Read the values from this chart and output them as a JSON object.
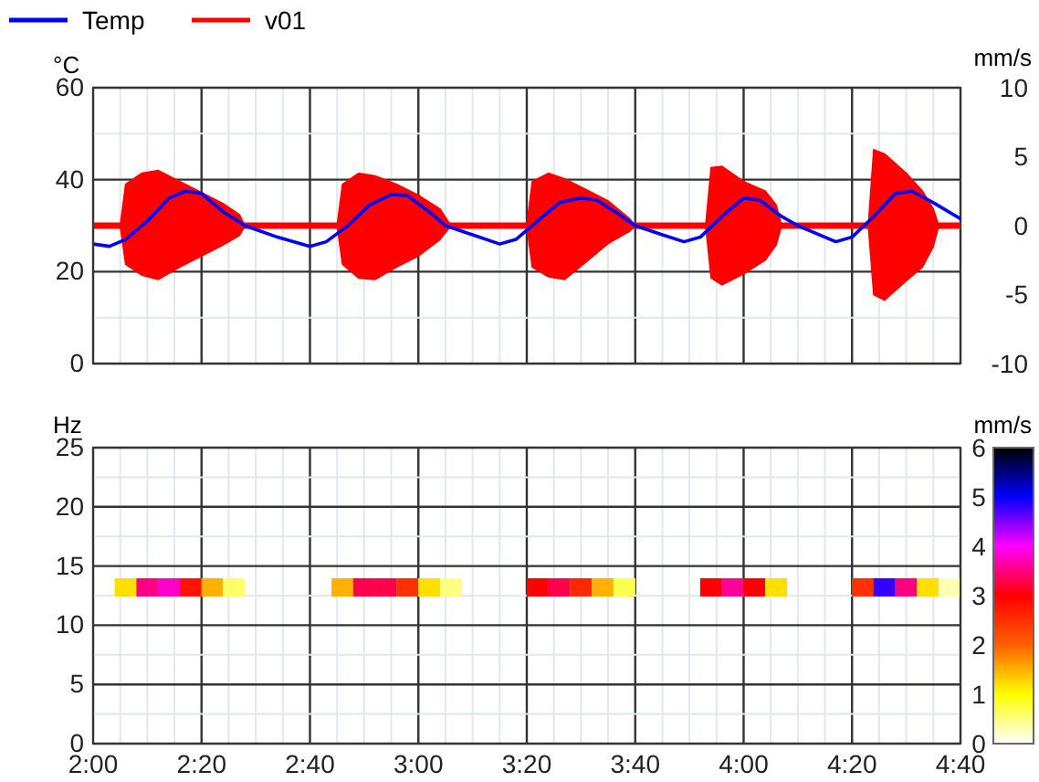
{
  "chart_data": [
    {
      "type": "line",
      "ylabel": "°C",
      "y2label": "mm/s",
      "legend": "top left",
      "grid": true,
      "tick_labels": "y",
      "xlim": [
        2,
        4.6667
      ],
      "xticks": [
        {
          "value": 2,
          "label": null
        },
        {
          "value": 2.3333,
          "label": null
        },
        {
          "value": 2.6667,
          "label": null
        },
        {
          "value": 3,
          "label": null
        },
        {
          "value": 3.3333,
          "label": null
        },
        {
          "value": 3.6667,
          "label": null
        },
        {
          "value": 4,
          "label": null
        },
        {
          "value": 4.3333,
          "label": null
        },
        {
          "value": 4.6667,
          "label": null
        }
      ],
      "ylim": [
        0,
        60
      ],
      "yticks": [
        0,
        20,
        40,
        60
      ],
      "y2lim": [
        -10,
        10
      ],
      "y2ticks": [
        -10,
        -5,
        0,
        5,
        10
      ],
      "series": [
        {
          "name": "Temp",
          "color": "#0000ff",
          "x": [
            2,
            2.05,
            2.1,
            2.1667,
            2.2333,
            2.2833,
            2.3333,
            2.4,
            2.4667,
            2.5667,
            2.6667,
            2.7167,
            2.7833,
            2.85,
            2.9167,
            2.9667,
            3.0333,
            3.0833,
            3.1667,
            3.25,
            3.3,
            3.3667,
            3.4333,
            3.5,
            3.55,
            3.6167,
            3.6667,
            3.75,
            3.8167,
            3.8667,
            3.9333,
            4,
            4.05,
            4.1167,
            4.1667,
            4.2333,
            4.2833,
            4.3333,
            4.4,
            4.4667,
            4.5167,
            4.5833,
            4.6667
          ],
          "values": [
            26,
            25.5,
            27,
            31,
            36,
            37.5,
            37,
            33,
            30,
            27.5,
            25.5,
            26.5,
            30,
            34.5,
            36.8,
            36.5,
            33,
            30,
            28,
            26,
            27,
            31,
            35,
            36,
            35.5,
            32.5,
            30,
            28,
            26.5,
            27.5,
            32,
            36,
            35.5,
            32,
            30,
            28,
            26.5,
            27.5,
            32,
            37,
            37.5,
            35,
            31.5
          ]
        },
        {
          "name": "v01",
          "color": "#ff0000",
          "axis": "y2",
          "x": [
            2,
            2.0833,
            2.1,
            2.15,
            2.2,
            2.2667,
            2.3333,
            2.4,
            2.45,
            2.4667,
            2.75,
            2.7667,
            2.8167,
            2.8667,
            2.9333,
            3,
            3.0667,
            3.1,
            3.3333,
            3.35,
            3.4,
            3.45,
            3.5167,
            3.5833,
            3.65,
            3.6667,
            3.8833,
            3.9,
            3.9333,
            4,
            4.0667,
            4.1,
            4.1167,
            4.3833,
            4.4,
            4.4333,
            4.5,
            4.55,
            4.5833,
            4.6,
            4.6667
          ],
          "values": [
            0,
            0,
            0,
            0,
            0,
            0,
            0,
            0,
            0,
            0,
            0,
            0,
            0,
            0,
            0,
            0,
            0,
            0,
            0,
            0,
            0,
            0,
            0,
            0,
            0,
            0,
            0,
            0,
            0,
            0,
            0,
            0,
            0,
            0,
            0,
            0,
            0,
            0,
            0,
            0,
            0
          ],
          "upper": [
            0,
            0,
            3,
            3.8,
            4,
            3.2,
            2.4,
            1.6,
            0.8,
            0,
            0,
            3,
            3.8,
            3.6,
            3,
            2.2,
            1.2,
            0,
            0,
            3.2,
            3.8,
            3.4,
            2.6,
            1.8,
            0.5,
            0,
            0,
            4.2,
            4.3,
            3.2,
            2.5,
            1.5,
            0,
            0,
            5.5,
            5.2,
            3.8,
            2.5,
            1.2,
            0,
            0
          ],
          "lower": [
            0,
            0,
            -2.8,
            -3.6,
            -3.9,
            -3,
            -2.2,
            -1.4,
            -0.7,
            0,
            0,
            -2.8,
            -3.8,
            -3.9,
            -3,
            -2.2,
            -1,
            0,
            0,
            -3,
            -3.7,
            -3.9,
            -2.6,
            -1.3,
            -0.4,
            0,
            0,
            -3.8,
            -4.3,
            -3.5,
            -2.5,
            -1.4,
            0,
            0,
            -5,
            -5.4,
            -4,
            -3,
            -1.5,
            0,
            0
          ]
        }
      ]
    },
    {
      "type": "scatter",
      "ylabel": "Hz",
      "clabel": "mm/s",
      "grid": true,
      "marker": "square",
      "x": [
        2.1,
        2.1667,
        2.2333,
        2.3,
        2.3667,
        2.4333,
        2.7667,
        2.8333,
        2.9,
        2.9667,
        3.0333,
        3.1,
        3.3667,
        3.4333,
        3.5,
        3.5667,
        3.6333,
        3.9,
        3.9667,
        4.0333,
        4.1,
        4.3667,
        4.4333,
        4.5,
        4.5667,
        4.6333
      ],
      "values": [
        13.2,
        13.2,
        13.2,
        13.2,
        13.2,
        13.2,
        13.2,
        13.2,
        13.2,
        13.2,
        13.2,
        13.2,
        13.2,
        13.2,
        13.2,
        13.2,
        13.2,
        13.2,
        13.2,
        13.2,
        13.2,
        13.2,
        13.2,
        13.2,
        13.2,
        13.2
      ],
      "cvalues": [
        1.2,
        3.5,
        3.8,
        2.8,
        1.5,
        0.6,
        1.5,
        3.3,
        3.3,
        2.5,
        1.2,
        0.5,
        3.0,
        3.3,
        2.6,
        1.5,
        0.7,
        3.0,
        3.6,
        3.0,
        1.2,
        2.5,
        4.8,
        3.5,
        1.2,
        0.3
      ],
      "xlim": [
        2,
        4.6667
      ],
      "xticks": [
        {
          "value": 2,
          "label": "2:00"
        },
        {
          "value": 2.3333,
          "label": "2:20"
        },
        {
          "value": 2.6667,
          "label": "2:40"
        },
        {
          "value": 3,
          "label": "3:00"
        },
        {
          "value": 3.3333,
          "label": "3:20"
        },
        {
          "value": 3.6667,
          "label": "3:40"
        },
        {
          "value": 4,
          "label": "4:00"
        },
        {
          "value": 4.3333,
          "label": "4:20"
        },
        {
          "value": 4.6667,
          "label": "4:40"
        }
      ],
      "ylim": [
        0,
        25
      ],
      "yticks": [
        0,
        5,
        10,
        15,
        20,
        25
      ],
      "clim": [
        0,
        6
      ],
      "cticks": [
        0,
        1,
        2,
        3,
        4,
        5,
        6
      ]
    }
  ]
}
